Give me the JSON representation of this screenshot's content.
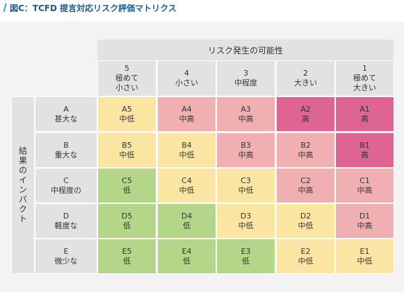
{
  "title": "図C：TCFD 提言対応リスク評価マトリクス",
  "x_axis_label": "リスク発生の可能性",
  "y_axis_label": "結果のインパクト",
  "columns": [
    {
      "num": "5",
      "label": "極めて\n小さい"
    },
    {
      "num": "4",
      "label": "小さい"
    },
    {
      "num": "3",
      "label": "中程度"
    },
    {
      "num": "2",
      "label": "大きい"
    },
    {
      "num": "1",
      "label": "極めて\n大きい"
    }
  ],
  "rows": [
    {
      "letter": "A",
      "label": "甚大な"
    },
    {
      "letter": "B",
      "label": "重大な"
    },
    {
      "letter": "C",
      "label": "中程度の"
    },
    {
      "letter": "D",
      "label": "軽度な"
    },
    {
      "letter": "E",
      "label": "微少な"
    }
  ],
  "colors": {
    "低": "#b3d688",
    "中低": "#fbe5a3",
    "中高": "#f0b0b1",
    "高": "#de6491"
  },
  "cells": [
    [
      {
        "code": "A5",
        "level": "中低"
      },
      {
        "code": "A4",
        "level": "中高"
      },
      {
        "code": "A3",
        "level": "中高"
      },
      {
        "code": "A2",
        "level": "高"
      },
      {
        "code": "A1",
        "level": "高"
      }
    ],
    [
      {
        "code": "B5",
        "level": "中低"
      },
      {
        "code": "B4",
        "level": "中低"
      },
      {
        "code": "B3",
        "level": "中高"
      },
      {
        "code": "B2",
        "level": "中高"
      },
      {
        "code": "B1",
        "level": "高"
      }
    ],
    [
      {
        "code": "C5",
        "level": "低"
      },
      {
        "code": "C4",
        "level": "中低"
      },
      {
        "code": "C3",
        "level": "中低"
      },
      {
        "code": "C2",
        "level": "中高"
      },
      {
        "code": "C1",
        "level": "中高"
      }
    ],
    [
      {
        "code": "D5",
        "level": "低"
      },
      {
        "code": "D4",
        "level": "低"
      },
      {
        "code": "D3",
        "level": "中低"
      },
      {
        "code": "D2",
        "level": "中低"
      },
      {
        "code": "D1",
        "level": "中高"
      }
    ],
    [
      {
        "code": "E5",
        "level": "低"
      },
      {
        "code": "E4",
        "level": "低"
      },
      {
        "code": "E3",
        "level": "低"
      },
      {
        "code": "E2",
        "level": "中低"
      },
      {
        "code": "E1",
        "level": "中低"
      }
    ]
  ]
}
